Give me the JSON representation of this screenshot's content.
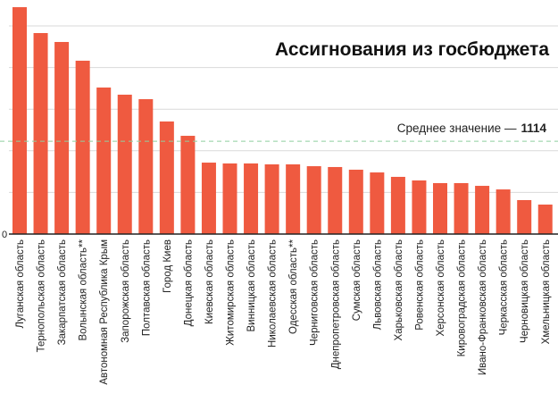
{
  "chart_data": {
    "type": "bar",
    "title": "Ассигнования из госбюджета",
    "mean_label": "Среднее значение —",
    "mean_value": 1114,
    "mean_value_label": "1114",
    "xlabel": "",
    "ylabel": "",
    "ylim": [
      0,
      2750
    ],
    "yticks": [
      0,
      500,
      1000,
      1500,
      2000,
      2500
    ],
    "ytick_labels": [
      "0",
      "",
      "",
      "",
      "",
      ""
    ],
    "grid": true,
    "categories": [
      "Луганская область",
      "Тернопольская область",
      "Закарпатская область",
      "Волынская область**",
      "Автономная Республика Крым",
      "Запорожская область",
      "Полтавская область",
      "Город Киев",
      "Донецкая область",
      "Киевская область",
      "Житомирская область",
      "Винницкая область",
      "Николаевская область",
      "Одесская область**",
      "Черниговская область",
      "Днепропетровская область",
      "Сумская область",
      "Львовская область",
      "Харьковская область",
      "Ровенская область",
      "Херсонская область",
      "Кировоградская область",
      "Ивано-Франковская область",
      "Черкасская область",
      "Черновицкая область",
      "Хмельницкая область"
    ],
    "values": [
      2725,
      2414,
      2307,
      2082,
      1760,
      1674,
      1620,
      1352,
      1180,
      858,
      848,
      848,
      837,
      837,
      815,
      805,
      773,
      740,
      687,
      644,
      612,
      612,
      579,
      536,
      408,
      354
    ],
    "colors": {
      "bar": "#ef5a40",
      "mean_line": "#8fcf9f",
      "grid": "#d9d9d9"
    }
  }
}
